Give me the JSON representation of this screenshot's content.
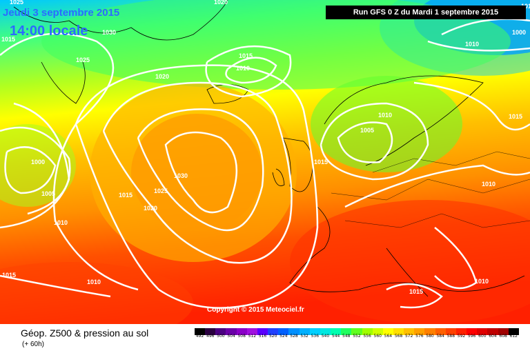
{
  "header": {
    "date_label": "Jeudi 3 septembre 2015",
    "time_label": "14:00 locale",
    "run_label": "Run GFS 0 Z du Mardi 1 septembre 2015"
  },
  "copyright": "Copyright © 2015 Meteociel.fr",
  "legend": {
    "title": "Géop. Z500 & pression au sol",
    "subtitle": "(+ 60h)",
    "scale_values": [
      "492",
      "496",
      "500",
      "504",
      "508",
      "512",
      "516",
      "520",
      "524",
      "528",
      "532",
      "536",
      "540",
      "544",
      "548",
      "552",
      "556",
      "560",
      "564",
      "568",
      "572",
      "576",
      "580",
      "584",
      "588",
      "592",
      "596",
      "600",
      "604",
      "608",
      "612"
    ],
    "scale_colors": [
      "#000000",
      "#2a0040",
      "#4b0082",
      "#6a00a8",
      "#8a00c8",
      "#a010e0",
      "#5a00ff",
      "#2040ff",
      "#0060ff",
      "#0090ff",
      "#00b0ff",
      "#00d0ff",
      "#00e8e0",
      "#00ffb0",
      "#20ff60",
      "#60ff20",
      "#a0ff00",
      "#d0ff00",
      "#ffff00",
      "#ffe000",
      "#ffc000",
      "#ffa000",
      "#ff8000",
      "#ff6000",
      "#ff4000",
      "#ff2000",
      "#ff0000",
      "#e00000",
      "#c00000",
      "#a00000",
      "#000000"
    ]
  },
  "pressure_labels": [
    {
      "text": "1025"
    },
    {
      "text": "1020"
    },
    {
      "text": "1030"
    },
    {
      "text": "1025"
    },
    {
      "text": "1020"
    },
    {
      "text": "1015"
    },
    {
      "text": "1010"
    },
    {
      "text": "1005"
    },
    {
      "text": "1000"
    },
    {
      "text": "1010"
    },
    {
      "text": "1015"
    },
    {
      "text": "1005"
    },
    {
      "text": "1010"
    },
    {
      "text": "1015"
    },
    {
      "text": "1000"
    },
    {
      "text": "1010"
    },
    {
      "text": "1015"
    },
    {
      "text": "1010"
    },
    {
      "text": "1030"
    },
    {
      "text": "1025"
    },
    {
      "text": "1020"
    },
    {
      "text": "1015"
    },
    {
      "text": "1010"
    },
    {
      "text": "1015"
    },
    {
      "text": "1010"
    },
    {
      "text": "1015"
    },
    {
      "text": "1010"
    }
  ],
  "icons": {
    "map": "weather-map-icon"
  }
}
